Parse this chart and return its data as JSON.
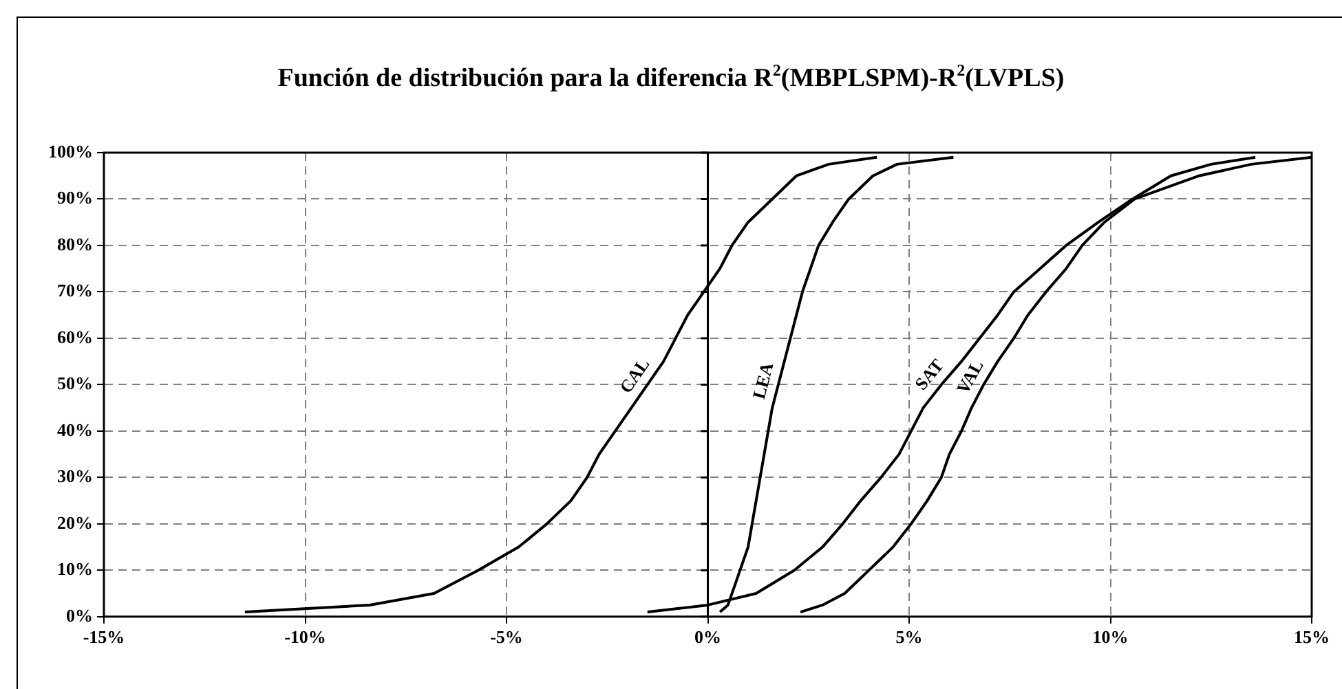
{
  "chart_data": {
    "type": "line",
    "title": "Función de distribución para la diferencia R$^{2}$(MBPLSPM)-R$^{2}$(LVPLS)",
    "series": [
      {
        "name": "CAL",
        "color": "#000000",
        "x": [
          -11.5,
          -8.4,
          -6.8,
          -5.7,
          -4.7,
          -4.0,
          -3.4,
          -3.0,
          -2.7,
          -2.3,
          -1.9,
          -1.5,
          -1.1,
          -0.8,
          -0.5,
          -0.1,
          0.3,
          0.6,
          1.0,
          1.6,
          2.2,
          3.0,
          4.2
        ],
        "values": [
          1,
          2.5,
          5,
          10,
          15,
          20,
          25,
          30,
          35,
          40,
          45,
          50,
          55,
          60,
          65,
          70,
          75,
          80,
          85,
          90,
          95,
          97.5,
          99
        ]
      },
      {
        "name": "LEA",
        "color": "#000000",
        "x": [
          0.3,
          0.5,
          0.6,
          0.8,
          1.0,
          1.1,
          1.2,
          1.3,
          1.4,
          1.5,
          1.6,
          1.75,
          1.9,
          2.05,
          2.2,
          2.35,
          2.55,
          2.75,
          3.1,
          3.5,
          4.1,
          4.7,
          6.1
        ],
        "values": [
          1,
          2.5,
          5,
          10,
          15,
          20,
          25,
          30,
          35,
          40,
          45,
          50,
          55,
          60,
          65,
          70,
          75,
          80,
          85,
          90,
          95,
          97.5,
          99
        ]
      },
      {
        "name": "SAT",
        "color": "#000000",
        "x": [
          -1.5,
          0,
          1.2,
          2.15,
          2.85,
          3.35,
          3.8,
          4.3,
          4.75,
          5.05,
          5.35,
          5.8,
          6.3,
          6.75,
          7.2,
          7.6,
          8.25,
          8.9,
          9.7,
          10.55,
          11.5,
          12.5,
          13.6
        ],
        "values": [
          1,
          2.5,
          5,
          10,
          15,
          20,
          25,
          30,
          35,
          40,
          45,
          50,
          55,
          60,
          65,
          70,
          75,
          80,
          85,
          90,
          95,
          97.5,
          99
        ]
      },
      {
        "name": "VAL",
        "color": "#000000",
        "x": [
          2.3,
          2.85,
          3.4,
          4.0,
          4.6,
          5.05,
          5.45,
          5.8,
          6.0,
          6.3,
          6.55,
          6.85,
          7.2,
          7.6,
          7.95,
          8.4,
          8.9,
          9.3,
          9.85,
          10.6,
          12.2,
          13.5,
          15
        ],
        "values": [
          1,
          2.5,
          5,
          10,
          15,
          20,
          25,
          30,
          35,
          40,
          45,
          50,
          55,
          60,
          65,
          70,
          75,
          80,
          85,
          90,
          95,
          97.5,
          99
        ]
      }
    ],
    "xlim": [
      -15,
      15
    ],
    "xticks": [
      {
        "value": -15,
        "label": "-15%"
      },
      {
        "value": -10,
        "label": "-10%"
      },
      {
        "value": -5,
        "label": "-5%"
      },
      {
        "value": 0,
        "label": "0%"
      },
      {
        "value": 5,
        "label": "5%"
      },
      {
        "value": 10,
        "label": "10%"
      },
      {
        "value": 15,
        "label": "15%"
      }
    ],
    "ylim": [
      0,
      100
    ],
    "yticks": [
      {
        "value": 0,
        "label": "0%"
      },
      {
        "value": 10,
        "label": "10%"
      },
      {
        "value": 20,
        "label": "20%"
      },
      {
        "value": 30,
        "label": "30%"
      },
      {
        "value": 40,
        "label": "40%"
      },
      {
        "value": 50,
        "label": "50%"
      },
      {
        "value": 60,
        "label": "60%"
      },
      {
        "value": 70,
        "label": "70%"
      },
      {
        "value": 80,
        "label": "80%"
      },
      {
        "value": 90,
        "label": "90%"
      },
      {
        "value": 100,
        "label": "100%"
      }
    ],
    "ref_lines": [
      {
        "axis": "x",
        "value": 0,
        "color": "#000000"
      }
    ],
    "grid": true,
    "marker": "none",
    "line_style": "solid"
  }
}
